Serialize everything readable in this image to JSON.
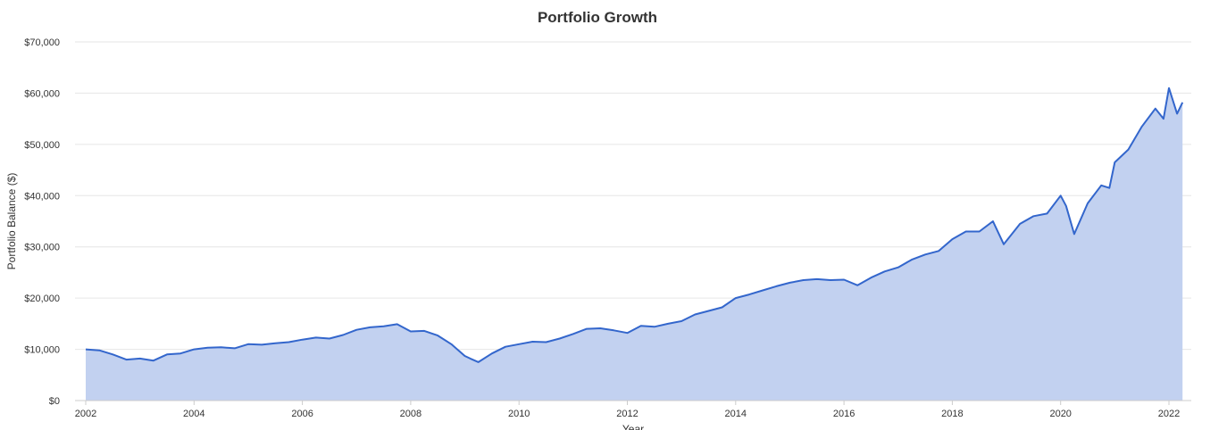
{
  "chart_data": {
    "type": "area",
    "title": "Portfolio Growth",
    "xlabel": "Year",
    "ylabel": "Portfolio Balance ($)",
    "x_ticks": [
      "2002",
      "2004",
      "2006",
      "2008",
      "2010",
      "2012",
      "2014",
      "2016",
      "2018",
      "2020",
      "2022"
    ],
    "y_ticks": [
      "$0",
      "$10,000",
      "$20,000",
      "$30,000",
      "$40,000",
      "$50,000",
      "$60,000",
      "$70,000"
    ],
    "xlim": [
      2002,
      2022.3
    ],
    "ylim": [
      0,
      70000
    ],
    "grid": true,
    "legend": "none",
    "colors": {
      "line": "#3366cc",
      "fill": "#c2d1f0",
      "grid": "#e6e6e6",
      "axis": "#cccccc"
    },
    "series": [
      {
        "x": [
          2002.0,
          2002.25,
          2002.5,
          2002.75,
          2003.0,
          2003.25,
          2003.5,
          2003.75,
          2004.0,
          2004.25,
          2004.5,
          2004.75,
          2005.0,
          2005.25,
          2005.5,
          2005.75,
          2006.0,
          2006.25,
          2006.5,
          2006.75,
          2007.0,
          2007.25,
          2007.5,
          2007.75,
          2008.0,
          2008.25,
          2008.5,
          2008.75,
          2009.0,
          2009.1,
          2009.25,
          2009.5,
          2009.75,
          2010.0,
          2010.25,
          2010.5,
          2010.75,
          2011.0,
          2011.25,
          2011.5,
          2011.75,
          2012.0,
          2012.25,
          2012.5,
          2012.75,
          2013.0,
          2013.25,
          2013.5,
          2013.75,
          2014.0,
          2014.25,
          2014.5,
          2014.75,
          2015.0,
          2015.25,
          2015.5,
          2015.75,
          2016.0,
          2016.25,
          2016.5,
          2016.75,
          2017.0,
          2017.25,
          2017.5,
          2017.75,
          2018.0,
          2018.25,
          2018.5,
          2018.75,
          2018.95,
          2019.25,
          2019.5,
          2019.75,
          2020.0,
          2020.1,
          2020.25,
          2020.5,
          2020.75,
          2020.9,
          2021.0,
          2021.25,
          2021.5,
          2021.75,
          2021.9,
          2022.0,
          2022.15,
          2022.25
        ],
        "values": [
          10000,
          9800,
          9000,
          8000,
          8200,
          7800,
          9000,
          9200,
          10000,
          10300,
          10400,
          10200,
          11000,
          10900,
          11200,
          11400,
          11900,
          12300,
          12100,
          12800,
          13800,
          14300,
          14500,
          14900,
          13500,
          13600,
          12700,
          11000,
          8700,
          8200,
          7500,
          9200,
          10500,
          11000,
          11500,
          11400,
          12100,
          13000,
          14000,
          14100,
          13700,
          13200,
          14600,
          14400,
          15000,
          15500,
          16800,
          17500,
          18200,
          20000,
          20700,
          21500,
          22300,
          23000,
          23500,
          23700,
          23500,
          23600,
          22500,
          24000,
          25200,
          26000,
          27500,
          28500,
          29200,
          31500,
          33000,
          33000,
          35000,
          30500,
          34500,
          36000,
          36500,
          40000,
          38000,
          32500,
          38500,
          42000,
          41500,
          46500,
          49000,
          53500,
          57000,
          55000,
          61000,
          56000,
          58200
        ]
      }
    ]
  }
}
